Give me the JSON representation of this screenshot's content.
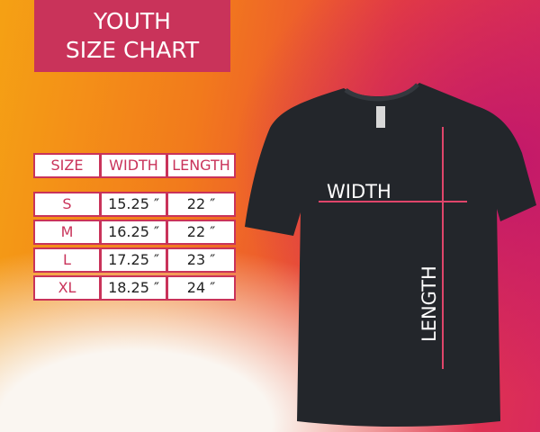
{
  "title": {
    "line1": "YOUTH",
    "line2": "SIZE CHART"
  },
  "table": {
    "headers": [
      "SIZE",
      "WIDTH",
      "LENGTH"
    ],
    "rows": [
      [
        "S",
        "15.25 ″",
        "22 ″"
      ],
      [
        "M",
        "16.25 ″",
        "22 ″"
      ],
      [
        "L",
        "17.25 ″",
        "23 ″"
      ],
      [
        "XL",
        "18.25 ″",
        "24 ″"
      ]
    ]
  },
  "shirt": {
    "width_label": "WIDTH",
    "length_label": "LENGTH",
    "color": "#23262b"
  },
  "colors": {
    "accent": "#c9335a"
  }
}
